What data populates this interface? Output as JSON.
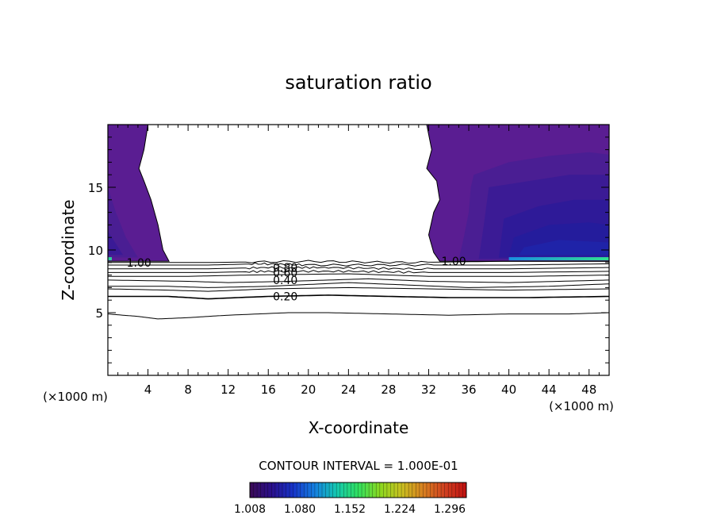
{
  "chart_data": {
    "type": "heatmap",
    "title": "saturation ratio",
    "xlabel": "X-coordinate",
    "ylabel": "Z-coordinate",
    "x_unit_left": "(×1000 m)",
    "x_unit_right": "(×1000 m)",
    "xlim": [
      0,
      50
    ],
    "ylim": [
      0,
      20
    ],
    "x_ticks": [
      {
        "value": 4,
        "label": "4"
      },
      {
        "value": 8,
        "label": "8"
      },
      {
        "value": 12,
        "label": "12"
      },
      {
        "value": 16,
        "label": "16"
      },
      {
        "value": 20,
        "label": "20"
      },
      {
        "value": 24,
        "label": "24"
      },
      {
        "value": 28,
        "label": "28"
      },
      {
        "value": 32,
        "label": "32"
      },
      {
        "value": 36,
        "label": "36"
      },
      {
        "value": 40,
        "label": "40"
      },
      {
        "value": 44,
        "label": "44"
      },
      {
        "value": 48,
        "label": "48"
      }
    ],
    "y_ticks": [
      {
        "value": 5,
        "label": "5"
      },
      {
        "value": 10,
        "label": "10"
      },
      {
        "value": 15,
        "label": "15"
      }
    ],
    "contour_interval": "CONTOUR INTERVAL = 1.000E-01",
    "colorbar": {
      "min": 1.008,
      "max": 1.32,
      "labels": [
        "1.008",
        "1.080",
        "1.152",
        "1.224",
        "1.296"
      ],
      "colors": [
        "#3b0a55",
        "#2a0f8a",
        "#1633c8",
        "#1580e0",
        "#15c8b0",
        "#30e060",
        "#8ad820",
        "#c8c020",
        "#d88020",
        "#d04020",
        "#c01010"
      ]
    },
    "contour_labels": [
      {
        "text": "1.00",
        "x": 3.1,
        "z": 9.0
      },
      {
        "text": "1.00",
        "x": 34.5,
        "z": 9.1
      },
      {
        "text": "0.80",
        "x": 17.7,
        "z": 8.6
      },
      {
        "text": "0.60",
        "x": 17.7,
        "z": 8.2
      },
      {
        "text": "0.40",
        "x": 17.7,
        "z": 7.6
      },
      {
        "text": "0.20",
        "x": 17.7,
        "z": 6.3
      }
    ],
    "contours": [
      {
        "level": 1.0,
        "points": [
          [
            0,
            9.0
          ],
          [
            10,
            9.0
          ],
          [
            20,
            9.1
          ],
          [
            30,
            9.0
          ],
          [
            40,
            9.1
          ],
          [
            50,
            9.1
          ]
        ]
      },
      {
        "level": 0.9,
        "points": [
          [
            0,
            8.8
          ],
          [
            10,
            8.8
          ],
          [
            15,
            8.9
          ],
          [
            20,
            8.8
          ],
          [
            30,
            8.8
          ],
          [
            40,
            8.8
          ],
          [
            50,
            8.9
          ]
        ]
      },
      {
        "level": 0.8,
        "points": [
          [
            0,
            8.5
          ],
          [
            10,
            8.5
          ],
          [
            16,
            8.6
          ],
          [
            22,
            8.6
          ],
          [
            30,
            8.5
          ],
          [
            40,
            8.5
          ],
          [
            50,
            8.6
          ]
        ]
      },
      {
        "level": 0.7,
        "points": [
          [
            0,
            8.2
          ],
          [
            10,
            8.2
          ],
          [
            16,
            8.3
          ],
          [
            24,
            8.3
          ],
          [
            32,
            8.2
          ],
          [
            40,
            8.2
          ],
          [
            50,
            8.3
          ]
        ]
      },
      {
        "level": 0.6,
        "points": [
          [
            0,
            7.9
          ],
          [
            8,
            7.9
          ],
          [
            14,
            8.0
          ],
          [
            24,
            8.1
          ],
          [
            32,
            7.9
          ],
          [
            42,
            7.9
          ],
          [
            50,
            8.0
          ]
        ]
      },
      {
        "level": 0.5,
        "points": [
          [
            0,
            7.6
          ],
          [
            8,
            7.5
          ],
          [
            12,
            7.4
          ],
          [
            18,
            7.5
          ],
          [
            26,
            7.7
          ],
          [
            32,
            7.5
          ],
          [
            40,
            7.4
          ],
          [
            50,
            7.6
          ]
        ]
      },
      {
        "level": 0.4,
        "points": [
          [
            0,
            7.1
          ],
          [
            6,
            7.1
          ],
          [
            10,
            7.0
          ],
          [
            16,
            7.1
          ],
          [
            24,
            7.4
          ],
          [
            30,
            7.2
          ],
          [
            36,
            7.0
          ],
          [
            44,
            7.1
          ],
          [
            50,
            7.3
          ]
        ]
      },
      {
        "level": 0.3,
        "points": [
          [
            0,
            6.9
          ],
          [
            6,
            6.8
          ],
          [
            10,
            6.7
          ],
          [
            16,
            6.9
          ],
          [
            24,
            7.0
          ],
          [
            32,
            6.9
          ],
          [
            40,
            6.8
          ],
          [
            50,
            6.9
          ]
        ]
      },
      {
        "level": 0.2,
        "points": [
          [
            0,
            6.3
          ],
          [
            6,
            6.3
          ],
          [
            10,
            6.1
          ],
          [
            16,
            6.3
          ],
          [
            22,
            6.4
          ],
          [
            28,
            6.3
          ],
          [
            34,
            6.2
          ],
          [
            42,
            6.2
          ],
          [
            50,
            6.3
          ]
        ]
      },
      {
        "level": 0.1,
        "points": [
          [
            0,
            4.9
          ],
          [
            3,
            4.7
          ],
          [
            5,
            4.5
          ],
          [
            8,
            4.6
          ],
          [
            12,
            4.8
          ],
          [
            18,
            5.0
          ],
          [
            22,
            5.0
          ],
          [
            28,
            4.9
          ],
          [
            34,
            4.8
          ],
          [
            40,
            4.9
          ],
          [
            46,
            4.9
          ],
          [
            50,
            5.0
          ]
        ]
      }
    ],
    "supersaturated_regions": [
      {
        "label": "left",
        "points": [
          [
            0,
            20
          ],
          [
            4,
            20
          ],
          [
            3.6,
            18
          ],
          [
            3.1,
            16.5
          ],
          [
            3.6,
            15.5
          ],
          [
            4.3,
            14
          ],
          [
            5.0,
            12
          ],
          [
            5.5,
            10
          ],
          [
            6.1,
            9.1
          ],
          [
            0,
            9.1
          ]
        ],
        "bands": [
          {
            "color": "#5a1d92",
            "points": [
              [
                0,
                20
              ],
              [
                4,
                20
              ],
              [
                3.6,
                18
              ],
              [
                3.1,
                16.5
              ],
              [
                3.6,
                15.5
              ],
              [
                4.3,
                14
              ],
              [
                5.0,
                12
              ],
              [
                5.5,
                10
              ],
              [
                6.1,
                9.1
              ],
              [
                0,
                9.1
              ]
            ]
          },
          {
            "color": "#4a1e93",
            "points": [
              [
                0,
                15
              ],
              [
                0.8,
                13
              ],
              [
                1.8,
                11
              ],
              [
                3.0,
                9.4
              ],
              [
                0,
                9.4
              ]
            ]
          },
          {
            "color": "#3a1a96",
            "points": [
              [
                0,
                11.5
              ],
              [
                0.8,
                10.5
              ],
              [
                1.5,
                9.6
              ],
              [
                0,
                9.6
              ]
            ]
          }
        ]
      },
      {
        "label": "right",
        "points": [
          [
            31.8,
            20
          ],
          [
            50,
            20
          ],
          [
            50,
            9.1
          ],
          [
            33.1,
            9.1
          ],
          [
            32.5,
            9.8
          ],
          [
            32.0,
            11.2
          ],
          [
            32.5,
            13.0
          ],
          [
            33.1,
            14.0
          ],
          [
            32.8,
            15.5
          ],
          [
            31.8,
            16.5
          ],
          [
            32.3,
            18.0
          ],
          [
            31.8,
            20
          ]
        ],
        "bands": [
          {
            "color": "#5a1d92",
            "points": [
              [
                31.8,
                20
              ],
              [
                50,
                20
              ],
              [
                50,
                9.1
              ],
              [
                33.1,
                9.1
              ],
              [
                32.5,
                9.8
              ],
              [
                32.0,
                11.2
              ],
              [
                32.5,
                13.0
              ],
              [
                33.1,
                14.0
              ],
              [
                32.8,
                15.5
              ],
              [
                31.8,
                16.5
              ],
              [
                32.3,
                18.0
              ],
              [
                31.8,
                20
              ]
            ]
          },
          {
            "color": "#4a1e93",
            "points": [
              [
                36.5,
                16
              ],
              [
                40,
                17
              ],
              [
                44,
                17.5
              ],
              [
                48,
                17.8
              ],
              [
                50,
                17.6
              ],
              [
                50,
                9.2
              ],
              [
                35,
                9.2
              ],
              [
                35.5,
                11
              ],
              [
                36,
                13
              ],
              [
                36.2,
                15
              ]
            ]
          },
          {
            "color": "#3b1b95",
            "points": [
              [
                38,
                15
              ],
              [
                42,
                15.5
              ],
              [
                46,
                16
              ],
              [
                50,
                16
              ],
              [
                50,
                9.3
              ],
              [
                37,
                9.3
              ],
              [
                37.5,
                12
              ]
            ]
          },
          {
            "color": "#2e1a98",
            "points": [
              [
                39.5,
                12.5
              ],
              [
                43,
                13.5
              ],
              [
                46.5,
                14
              ],
              [
                50,
                14
              ],
              [
                50,
                9.4
              ],
              [
                39,
                9.4
              ]
            ]
          },
          {
            "color": "#241c9c",
            "points": [
              [
                40.5,
                11
              ],
              [
                44,
                12
              ],
              [
                48,
                12.2
              ],
              [
                50,
                12
              ],
              [
                50,
                9.5
              ],
              [
                40,
                9.5
              ]
            ]
          },
          {
            "color": "#1f23a8",
            "points": [
              [
                41.5,
                10.2
              ],
              [
                45,
                10.8
              ],
              [
                50,
                10.6
              ],
              [
                50,
                9.6
              ],
              [
                41,
                9.6
              ]
            ]
          }
        ]
      }
    ],
    "bright_streak": {
      "x": [
        40,
        50
      ],
      "z": 9.3,
      "colors": [
        "#1a8fe0",
        "#30e090"
      ]
    }
  }
}
